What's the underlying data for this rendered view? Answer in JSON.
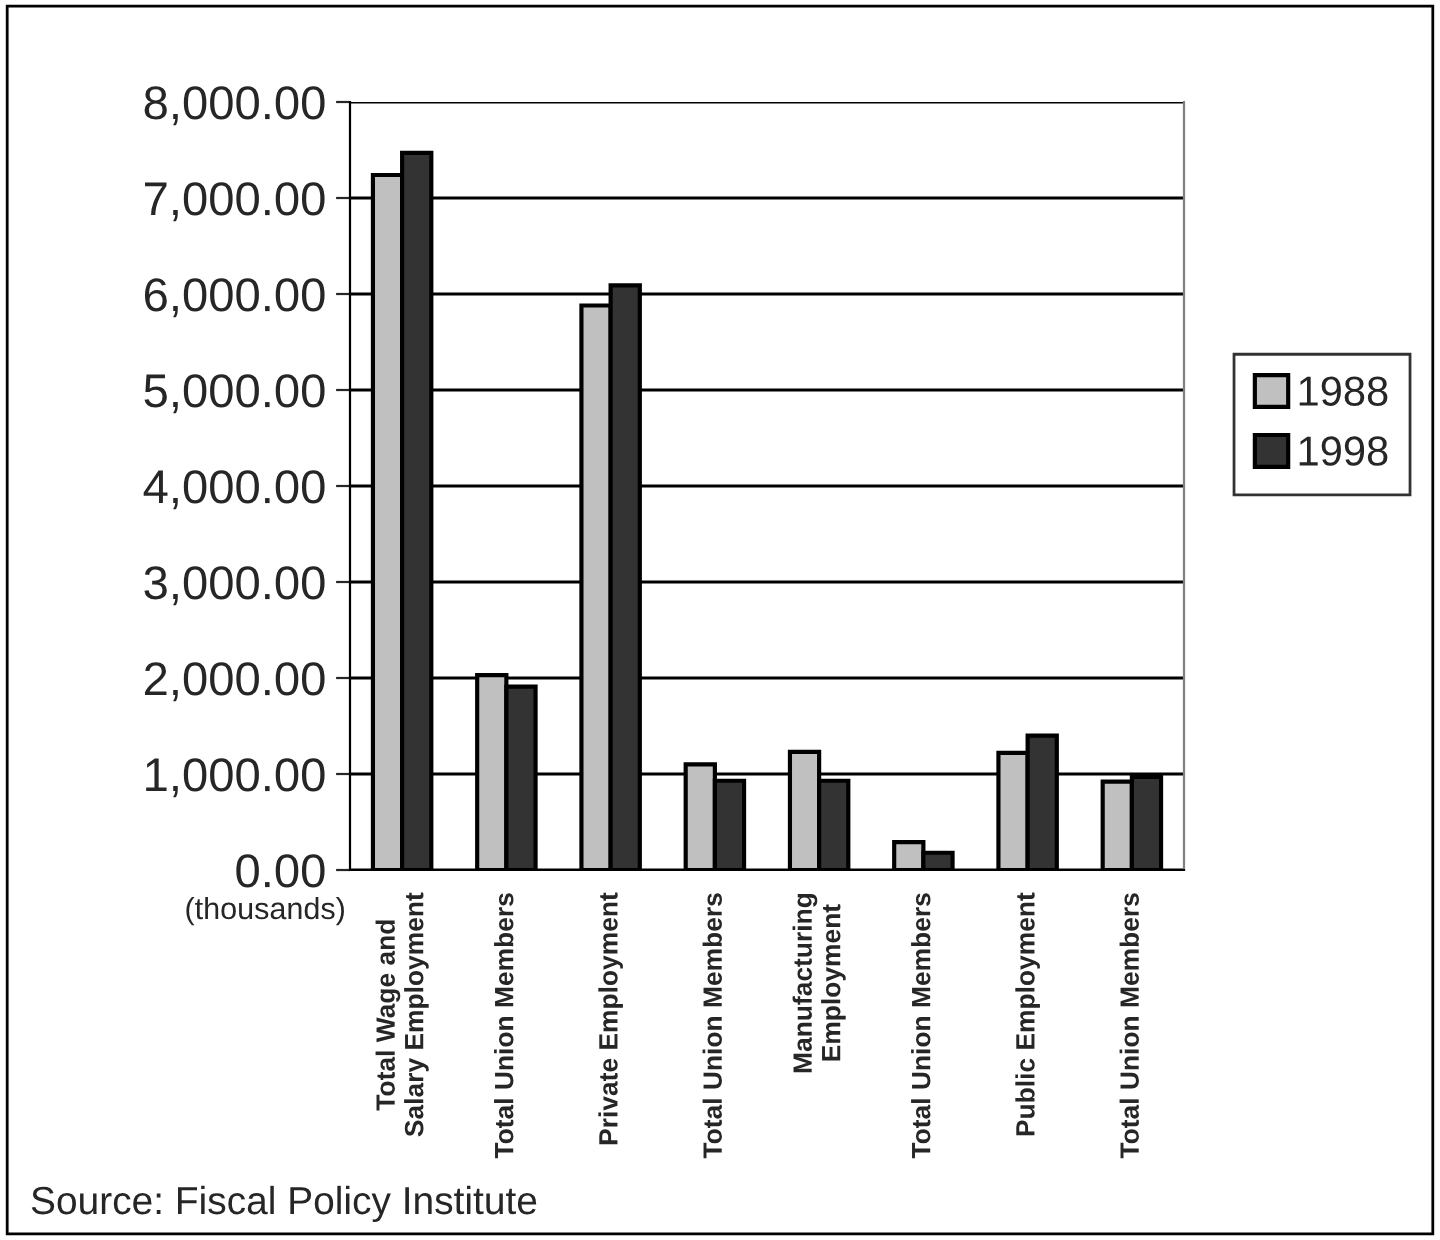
{
  "chart_data": {
    "type": "bar",
    "categories": [
      "Total Wage and\nSalary Employment",
      "Total Union Members",
      "Private Employment",
      "Total Union Members",
      "Manufacturing\nEmployment",
      "Total Union Members",
      "Public Employment",
      "Total Union Members"
    ],
    "series": [
      {
        "name": "1988",
        "color": "#c0c0c0",
        "values": [
          7240,
          2030,
          5880,
          1100,
          1230,
          290,
          1220,
          920
        ]
      },
      {
        "name": "1998",
        "color": "#333333",
        "values": [
          7470,
          1910,
          6090,
          930,
          930,
          180,
          1400,
          970
        ]
      }
    ],
    "ylim": [
      0,
      8000
    ],
    "yticks": [
      {
        "value": 0,
        "label": "0.00"
      },
      {
        "value": 1000,
        "label": "1,000.00"
      },
      {
        "value": 2000,
        "label": "2,000.00"
      },
      {
        "value": 3000,
        "label": "3,000.00"
      },
      {
        "value": 4000,
        "label": "4,000.00"
      },
      {
        "value": 5000,
        "label": "5,000.00"
      },
      {
        "value": 6000,
        "label": "6,000.00"
      },
      {
        "value": 7000,
        "label": "7,000.00"
      },
      {
        "value": 8000,
        "label": "8,000.00"
      }
    ],
    "ylabel": "(thousands)",
    "annotations": [
      "Source: Fiscal Policy Institute"
    ],
    "grid": "y",
    "legend": "right"
  }
}
